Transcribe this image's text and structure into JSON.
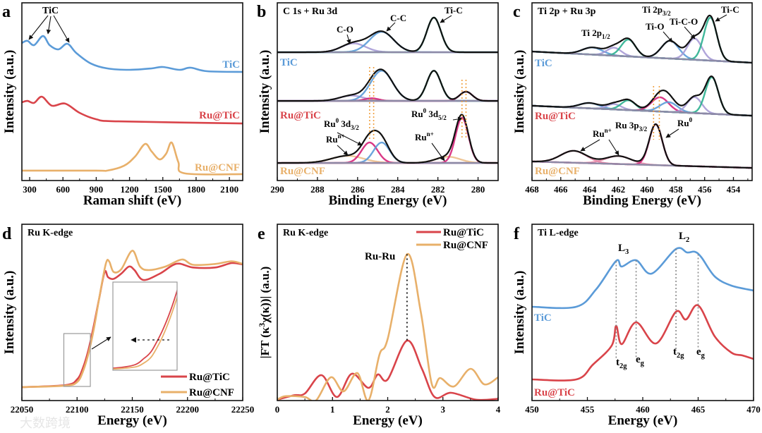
{
  "figure": {
    "panel_letters": [
      "a",
      "b",
      "c",
      "d",
      "e",
      "f"
    ],
    "watermark": "大数跨境",
    "colors": {
      "tic": "#5b9bd8",
      "ru_tic": "#d9444a",
      "ru_cnf": "#e8b06a",
      "envelope": "#111111",
      "background_line": "#8d8aa6",
      "ti_c": "#2bb08f",
      "c_c": "#5b9bd8",
      "c_o": "#a79bd6",
      "ru0": "#d6237a",
      "run": "#ecc08c",
      "ti_o": "#5b9bd8",
      "ti_c_o": "#a79bd6",
      "guide": "#f0a040"
    }
  },
  "chart_data": [
    {
      "id": "a",
      "type": "line",
      "xlabel": "Raman shift (eV)",
      "ylabel": "Intensity (a.u.)",
      "xlim": [
        230,
        2220
      ],
      "ylim": [
        0,
        10
      ],
      "xticks": [
        300,
        600,
        900,
        1200,
        1500,
        1800,
        2100
      ],
      "annotations": [
        "TiC"
      ],
      "series": [
        {
          "name": "TiC",
          "color": "#5b9bd8",
          "x": [
            230,
            280,
            340,
            420,
            480,
            560,
            640,
            720,
            850,
            1000,
            1200,
            1400,
            1500,
            1650,
            1750,
            1900,
            2220
          ],
          "y": [
            7.74,
            7.86,
            7.62,
            8.13,
            7.62,
            7.38,
            7.7,
            7.18,
            6.59,
            6.31,
            6.23,
            6.31,
            6.39,
            6.23,
            6.35,
            6.15,
            6.11
          ]
        },
        {
          "name": "Ru@TiC",
          "color": "#d9444a",
          "x": [
            230,
            280,
            340,
            410,
            500,
            620,
            750,
            900,
            1100,
            2220
          ],
          "y": [
            4.4,
            4.48,
            4.37,
            4.72,
            4.21,
            4.33,
            3.81,
            3.45,
            3.33,
            3.21
          ]
        },
        {
          "name": "Ru@CNF",
          "color": "#e8b06a",
          "x": [
            230,
            900,
            1000,
            1150,
            1250,
            1340,
            1400,
            1470,
            1530,
            1580,
            1640,
            1700,
            2220
          ],
          "y": [
            0.56,
            0.56,
            0.56,
            0.83,
            1.35,
            2.06,
            1.63,
            1.19,
            1.51,
            2.14,
            1.03,
            0.4,
            0.36
          ]
        }
      ]
    },
    {
      "id": "b",
      "type": "line",
      "title": "C 1s + Ru 3d",
      "xlabel": "Binding Energy (eV)",
      "ylabel": "Intensity (a.u.)",
      "xlim": [
        290,
        279
      ],
      "ylim": [
        0,
        10
      ],
      "xticks": [
        290,
        288,
        286,
        284,
        282,
        280
      ],
      "annotations": [
        "C-O",
        "C-C",
        "Ti-C",
        "Ru^{0} 3d_{3/2}",
        "Ru^{n+}",
        "Ru^{0} 3d_{5/2}",
        "Ru^{n+}"
      ],
      "series": [
        {
          "name": "TiC",
          "color": "#5b9bd8",
          "background": [
            7.22,
            7.22
          ],
          "components": [
            {
              "name": "C-O",
              "center": 286.2,
              "height": 0.5,
              "sigma": 0.6,
              "color": "#a79bd6"
            },
            {
              "name": "C-C",
              "center": 284.8,
              "height": 1.15,
              "sigma": 0.6,
              "color": "#5b9bd8"
            },
            {
              "name": "Ti-C",
              "center": 282.2,
              "height": 1.95,
              "sigma": 0.35,
              "color": "#2bb08f"
            }
          ]
        },
        {
          "name": "Ru@TiC",
          "color": "#d9444a",
          "background": [
            4.48,
            4.48
          ],
          "components": [
            {
              "name": "C-O",
              "center": 286.3,
              "height": 0.3,
              "sigma": 0.6,
              "color": "#a79bd6"
            },
            {
              "name": "Ru0 3d3/2",
              "center": 285.3,
              "height": 0.15,
              "sigma": 0.35,
              "color": "#d6237a"
            },
            {
              "name": "C-C",
              "center": 284.8,
              "height": 1.7,
              "sigma": 0.55,
              "color": "#5b9bd8"
            },
            {
              "name": "Ti-C",
              "center": 282.2,
              "height": 1.7,
              "sigma": 0.35,
              "color": "#2bb08f"
            },
            {
              "name": "Ru0 3d5/2",
              "center": 280.6,
              "height": 0.52,
              "sigma": 0.32,
              "color": "#d6237a"
            }
          ]
        },
        {
          "name": "Ru@CNF",
          "color": "#e8b06a",
          "background": [
            0.99,
            0.99
          ],
          "components": [
            {
              "name": "Run+ 3d3/2",
              "center": 286.5,
              "height": 0.4,
              "sigma": 0.8,
              "color": "#ecc08c"
            },
            {
              "name": "Ru0 3d3/2",
              "center": 285.4,
              "height": 1.15,
              "sigma": 0.4,
              "color": "#d6237a"
            },
            {
              "name": "C-C",
              "center": 284.8,
              "height": 1.15,
              "sigma": 0.4,
              "color": "#5b9bd8"
            },
            {
              "name": "Run+ 3d5/2",
              "center": 281.5,
              "height": 0.35,
              "sigma": 0.6,
              "color": "#ecc08c"
            },
            {
              "name": "Ru0 3d5/2",
              "center": 280.8,
              "height": 2.54,
              "sigma": 0.32,
              "color": "#d6237a"
            }
          ]
        }
      ]
    },
    {
      "id": "c",
      "type": "line",
      "title": "Ti 2p + Ru 3p",
      "xlabel": "Binding Energy (eV)",
      "ylabel": "Intensity (a.u.)",
      "xlim": [
        468,
        452.7
      ],
      "ylim": [
        0,
        10
      ],
      "xticks": [
        468,
        466,
        464,
        462,
        460,
        458,
        456,
        454
      ],
      "annotations": [
        "Ti 2p_{3/2}",
        "Ti 2p_{1/2}",
        "Ti-O",
        "Ti-C-O",
        "Ti-C",
        "Ru 3p_{3/2}",
        "Ru^{0}",
        "Ru^{n+}"
      ],
      "series": [
        {
          "name": "TiC",
          "color": "#5b9bd8",
          "background": [
            7.26,
            6.63
          ],
          "components": [
            {
              "name": "Ti 2p1/2 Ti-O",
              "center": 463.8,
              "height": 0.4,
              "sigma": 0.7,
              "color": "#5b9bd8"
            },
            {
              "name": "Ti 2p1/2 Ti-C-O",
              "center": 462.3,
              "height": 0.45,
              "sigma": 0.5,
              "color": "#a79bd6"
            },
            {
              "name": "Ti 2p1/2 Ti-C",
              "center": 461.3,
              "height": 0.95,
              "sigma": 0.5,
              "color": "#2bb08f"
            },
            {
              "name": "Ti-O",
              "center": 458.4,
              "height": 1.0,
              "sigma": 0.6,
              "color": "#5b9bd8"
            },
            {
              "name": "Ti-C-O",
              "center": 456.7,
              "height": 1.2,
              "sigma": 0.5,
              "color": "#a79bd6"
            },
            {
              "name": "Ti-C",
              "center": 455.6,
              "height": 2.42,
              "sigma": 0.45,
              "color": "#2bb08f"
            }
          ]
        },
        {
          "name": "Ru@TiC",
          "color": "#d9444a",
          "background": [
            4.21,
            3.65
          ],
          "components": [
            {
              "name": "Ti 2p1/2 Ti-O",
              "center": 464.0,
              "height": 0.3,
              "sigma": 0.7,
              "color": "#5b9bd8"
            },
            {
              "name": "Ti 2p1/2 Ti-C-O",
              "center": 462.3,
              "height": 0.3,
              "sigma": 0.5,
              "color": "#a79bd6"
            },
            {
              "name": "Ti 2p1/2 Ti-C",
              "center": 461.3,
              "height": 0.55,
              "sigma": 0.5,
              "color": "#2bb08f"
            },
            {
              "name": "Ru0 3p3/2",
              "center": 459.1,
              "height": 0.8,
              "sigma": 0.6,
              "color": "#d6237a"
            },
            {
              "name": "Ti-O",
              "center": 458.5,
              "height": 0.55,
              "sigma": 0.6,
              "color": "#5b9bd8"
            },
            {
              "name": "Ti-C-O",
              "center": 456.7,
              "height": 0.9,
              "sigma": 0.5,
              "color": "#a79bd6"
            },
            {
              "name": "Ti-C",
              "center": 455.5,
              "height": 2.06,
              "sigma": 0.45,
              "color": "#2bb08f"
            }
          ]
        },
        {
          "name": "Ru@CNF",
          "color": "#e8b06a",
          "background": [
            1.07,
            0.71
          ],
          "components": [
            {
              "name": "Run+",
              "center": 465.1,
              "height": 0.67,
              "sigma": 0.9,
              "color": "#e88aa8"
            },
            {
              "name": "Run+",
              "center": 462.0,
              "height": 0.45,
              "sigma": 0.9,
              "color": "#e88aa8"
            },
            {
              "name": "Ru0 3p3/2",
              "center": 459.4,
              "height": 2.3,
              "sigma": 0.45,
              "color": "#d6237a"
            }
          ]
        }
      ]
    },
    {
      "id": "d",
      "type": "line",
      "title": "Ru K-edge",
      "xlabel": "Energy (eV)",
      "ylabel": "Intensity (a.u.)",
      "xlim": [
        22050,
        22250
      ],
      "ylim": [
        0,
        10
      ],
      "xticks": [
        22050,
        22100,
        22150,
        22200,
        22250
      ],
      "legend": "bottom-right",
      "inset": {
        "xlim": [
          22088,
          22112
        ],
        "ylim": [
          0.8,
          3.6
        ]
      },
      "series": [
        {
          "name": "Ru@TiC",
          "color": "#d9444a",
          "x": [
            22050,
            22090,
            22100,
            22105,
            22110,
            22115,
            22120,
            22125,
            22128,
            22133,
            22140,
            22147,
            22152,
            22160,
            22175,
            22190,
            22205,
            22225,
            22240,
            22250
          ],
          "y": [
            0.76,
            0.88,
            1.2,
            1.8,
            2.8,
            4.2,
            5.8,
            7.3,
            7.0,
            6.9,
            7.2,
            7.6,
            7.4,
            6.84,
            7.2,
            7.76,
            7.55,
            7.55,
            7.8,
            7.72
          ]
        },
        {
          "name": "Ru@CNF",
          "color": "#e8b06a",
          "x": [
            22050,
            22090,
            22100,
            22105,
            22110,
            22115,
            22120,
            22126,
            22129,
            22133,
            22140,
            22150,
            22157,
            22165,
            22180,
            22195,
            22205,
            22225,
            22240,
            22250
          ],
          "y": [
            0.76,
            0.85,
            1.05,
            1.6,
            2.6,
            4.0,
            5.8,
            7.75,
            7.9,
            7.3,
            7.45,
            8.5,
            7.6,
            7.4,
            7.6,
            8.0,
            7.7,
            7.75,
            7.9,
            7.75
          ]
        }
      ]
    },
    {
      "id": "e",
      "type": "line",
      "title": "Ru K-edge",
      "xlabel": "Energy (eV)",
      "ylabel": "|FT (κ^{3}χ(κ))| (a.u.)",
      "xlim": [
        0,
        4
      ],
      "ylim": [
        0,
        10
      ],
      "xticks": [
        0,
        1,
        2,
        3,
        4
      ],
      "legend": "top-right",
      "annotations": [
        "Ru-Ru"
      ],
      "series": [
        {
          "name": "Ru@TiC",
          "color": "#d9444a",
          "x": [
            0,
            0.3,
            0.5,
            0.8,
            1.08,
            1.35,
            1.65,
            1.82,
            2.0,
            2.35,
            2.62,
            2.85,
            3.15,
            3.6,
            4.0
          ],
          "y": [
            0.05,
            0.3,
            0.4,
            1.44,
            0.2,
            1.52,
            0.72,
            1.48,
            1.2,
            3.4,
            1.8,
            0.2,
            0.44,
            0.05,
            0.1
          ]
        },
        {
          "name": "Ru@CNF",
          "color": "#e8b06a",
          "x": [
            0,
            0.15,
            0.5,
            0.7,
            0.97,
            1.2,
            1.45,
            1.65,
            1.85,
            2.0,
            2.35,
            2.6,
            2.8,
            2.95,
            3.2,
            3.5,
            3.75,
            4.0
          ],
          "y": [
            0.05,
            0.25,
            0.2,
            0.0,
            1.32,
            0.52,
            1.56,
            0.0,
            2.6,
            3.5,
            8.3,
            5.0,
            0.92,
            1.28,
            0.8,
            1.8,
            0.92,
            1.32
          ]
        }
      ]
    },
    {
      "id": "f",
      "type": "line",
      "title": "Ti L-edge",
      "xlabel": "Energy (eV)",
      "ylabel": "Intensity (a.u.)",
      "xlim": [
        450,
        470
      ],
      "ylim": [
        0,
        10
      ],
      "xticks": [
        450,
        455,
        460,
        465,
        470
      ],
      "annotations": [
        "L_{3}",
        "L_{2}",
        "t_{2g}",
        "e_{g}",
        "t_{2g}",
        "e_{g}"
      ],
      "series": [
        {
          "name": "TiC",
          "color": "#5b9bd8",
          "x": [
            450,
            454,
            455.8,
            457.6,
            458.1,
            459.4,
            460.8,
            463,
            464,
            464.7,
            465.3,
            466.5,
            468,
            470
          ],
          "y": [
            5.32,
            5.32,
            6.32,
            7.92,
            7.6,
            7.96,
            7.2,
            8.6,
            8.4,
            8.44,
            8.12,
            7.04,
            6.52,
            6.24
          ]
        },
        {
          "name": "Ru@TiC",
          "color": "#d9444a",
          "x": [
            450,
            454,
            455.5,
            457.2,
            457.6,
            458.1,
            459.4,
            461.2,
            463,
            463.9,
            465,
            466.5,
            468,
            469,
            470
          ],
          "y": [
            1.2,
            1.2,
            2.04,
            3.12,
            4.24,
            3.2,
            4.44,
            3.24,
            5.04,
            4.6,
            5.4,
            3.64,
            2.72,
            2.56,
            2.36
          ]
        }
      ]
    }
  ]
}
